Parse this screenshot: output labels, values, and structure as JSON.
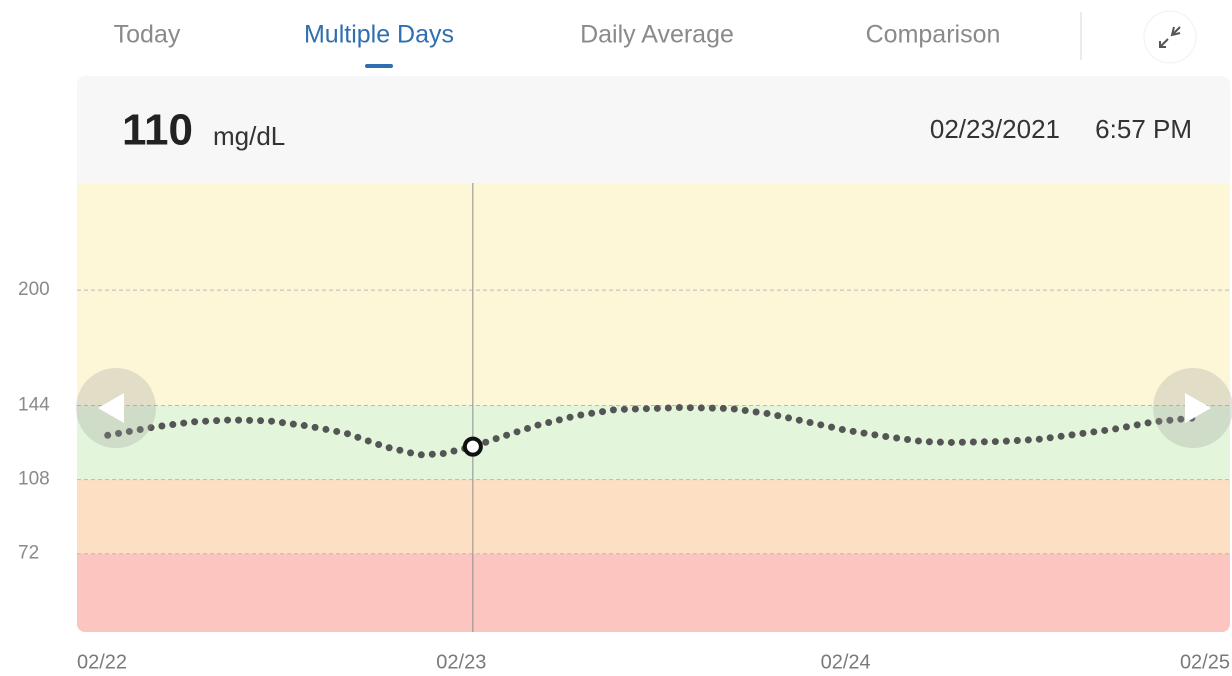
{
  "tabs": [
    "Today",
    "Multiple Days",
    "Daily Average",
    "Comparison"
  ],
  "active_tab": 1,
  "reading": {
    "value": 110,
    "unit": "mg/dL",
    "date": "02/23/2021",
    "time": "6:57 PM"
  },
  "chart_data": {
    "type": "line",
    "x": [
      0.08,
      0.2,
      0.3,
      0.4,
      0.5,
      0.6,
      0.7,
      0.8,
      0.89,
      0.95,
      1.03,
      1.1,
      1.2,
      1.3,
      1.4,
      1.5,
      1.57,
      1.7,
      1.8,
      1.9,
      2.0,
      2.1,
      2.2,
      2.27,
      2.4,
      2.5,
      2.6,
      2.7,
      2.8,
      2.91
    ],
    "series": [
      {
        "color": "#555555",
        "values": [
          129.5,
          133.5,
          136,
          137,
          136.5,
          134,
          130.5,
          124,
          120,
          120.5,
          124,
          128.5,
          134.5,
          139,
          142,
          142.5,
          143,
          142.5,
          140,
          136,
          132,
          129,
          126.5,
          126,
          126.5,
          127.5,
          130,
          132.5,
          136,
          138
        ]
      }
    ],
    "selected": 10,
    "xlim": [
      0,
      3
    ],
    "xticks": [
      {
        "value": 0,
        "label": "02/22"
      },
      {
        "value": 1,
        "label": "02/23"
      },
      {
        "value": 2,
        "label": "02/24"
      },
      {
        "value": 3,
        "label": "02/25"
      }
    ],
    "ylim": [
      34,
      252
    ],
    "yticks": [
      72,
      108,
      144,
      200
    ],
    "grid": true,
    "zones": [
      {
        "min": 144,
        "color": "#fdf7d8"
      },
      {
        "min": 108,
        "color": "#e3f5da"
      },
      {
        "min": 72,
        "color": "#fde0c4"
      },
      {
        "color": "#fcc5c0"
      }
    ]
  }
}
